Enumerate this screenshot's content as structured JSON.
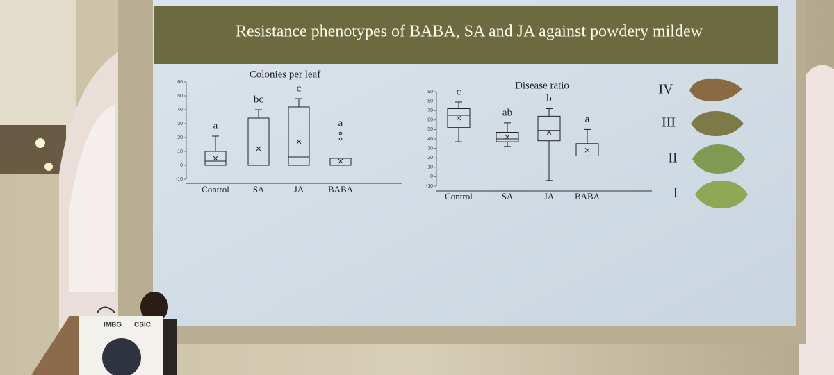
{
  "slide": {
    "title": "Resistance phenotypes of BABA, SA and JA against powdery mildew",
    "severity_labels": [
      "IV",
      "III",
      "II",
      "I"
    ]
  },
  "podium": {
    "logos": [
      "IMBG",
      "CSIC"
    ]
  },
  "chart_data": [
    {
      "type": "box",
      "title": "Colonies per leaf",
      "categories": [
        "Control",
        "SA",
        "JA",
        "BABA"
      ],
      "letters": [
        "a",
        "bc",
        "c",
        "a"
      ],
      "boxes": [
        {
          "min": 0,
          "q1": 0,
          "median": 3,
          "q3": 10,
          "max": 21,
          "mean": 5
        },
        {
          "min": 0,
          "q1": 0,
          "median": 0,
          "q3": 34,
          "max": 40,
          "mean": 12
        },
        {
          "min": 0,
          "q1": 0,
          "median": 6,
          "q3": 42,
          "max": 48,
          "mean": 17
        },
        {
          "min": 0,
          "q1": 0,
          "median": 0,
          "q3": 5,
          "max": 5,
          "mean": 3,
          "outliers": [
            19,
            23
          ]
        }
      ],
      "color": "#222222",
      "ylim": [
        -10,
        60
      ],
      "yticks": [
        -10,
        0,
        10,
        20,
        30,
        40,
        50,
        60
      ]
    },
    {
      "type": "box",
      "title": "Disease ratio",
      "categories": [
        "Control",
        "SA",
        "JA",
        "BABA"
      ],
      "letters": [
        "c",
        "ab",
        "b",
        "a"
      ],
      "boxes": [
        {
          "min": 37,
          "q1": 52,
          "median": 65,
          "q3": 72,
          "max": 79,
          "mean": 62
        },
        {
          "min": 32,
          "q1": 37,
          "median": 40,
          "q3": 47,
          "max": 57,
          "mean": 42
        },
        {
          "min": -4,
          "q1": 38,
          "median": 49,
          "q3": 64,
          "max": 72,
          "mean": 47
        },
        {
          "min": 22,
          "q1": 22,
          "median": 22,
          "q3": 35,
          "max": 50,
          "mean": 28
        }
      ],
      "color": "#222222",
      "ylim": [
        -10,
        90
      ],
      "yticks": [
        -10,
        0,
        10,
        20,
        30,
        40,
        50,
        60,
        70,
        80,
        90
      ]
    }
  ]
}
